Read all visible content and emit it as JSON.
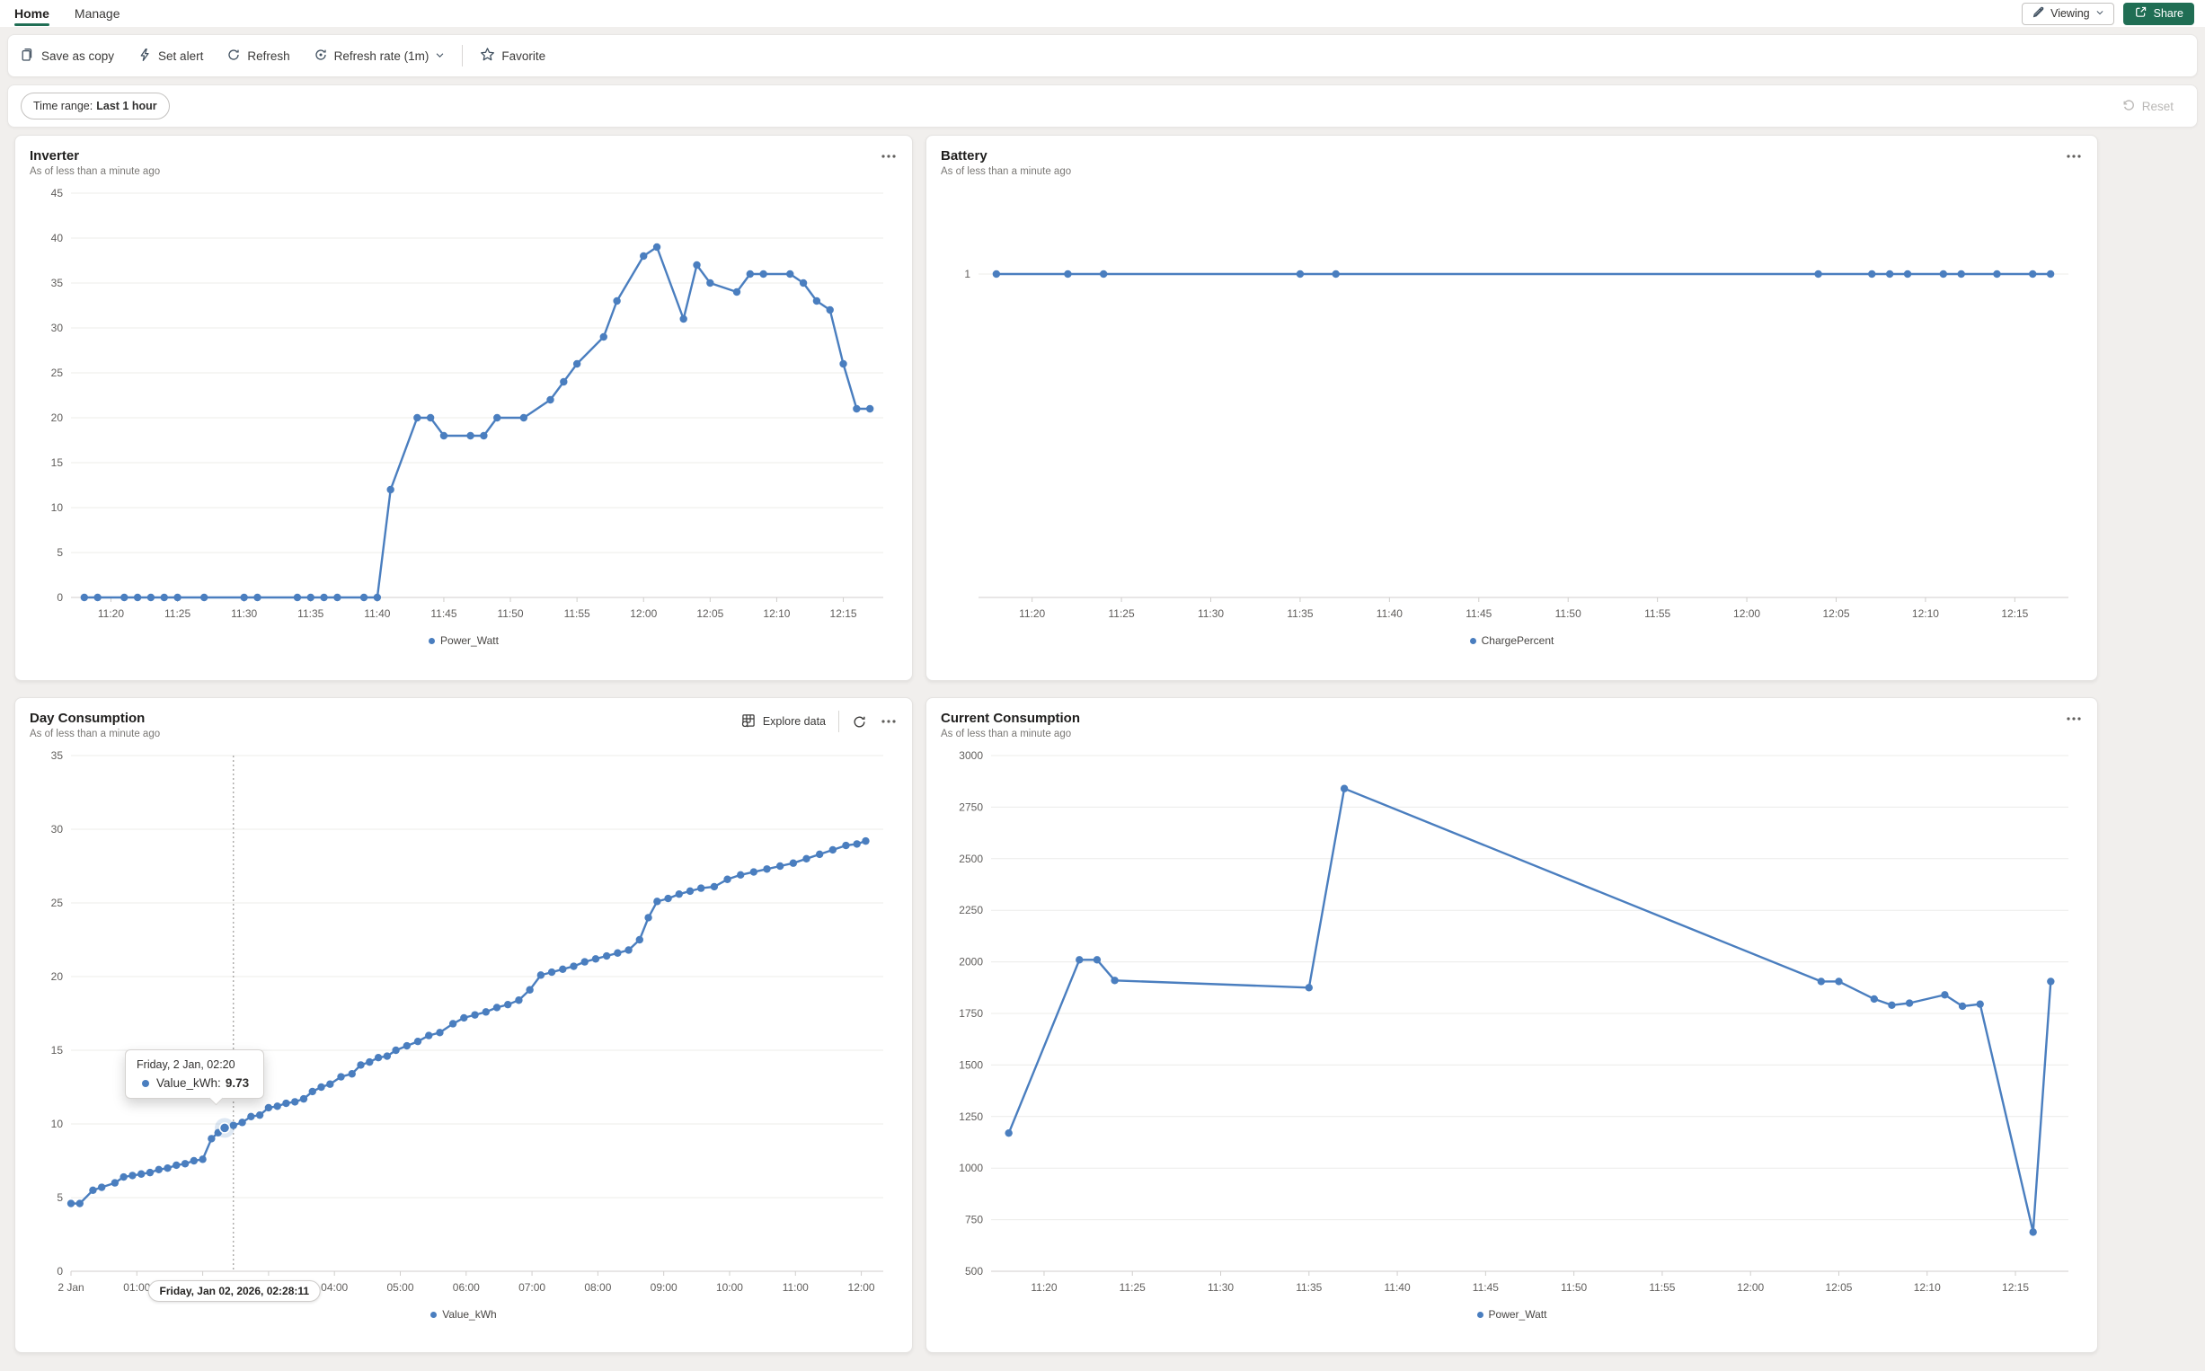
{
  "header": {
    "tabs": [
      {
        "label": "Home"
      },
      {
        "label": "Manage"
      }
    ],
    "viewing_label": "Viewing",
    "share_label": "Share"
  },
  "toolbar": {
    "save_as_copy": "Save as copy",
    "set_alert": "Set alert",
    "refresh": "Refresh",
    "refresh_rate": "Refresh rate (1m)",
    "favorite": "Favorite"
  },
  "filter_bar": {
    "time_range_label": "Time range:",
    "time_range_value": "Last 1 hour",
    "reset_label": "Reset"
  },
  "day_panel_actions": {
    "explore_data": "Explore data"
  },
  "day_tooltip": {
    "date": "Friday, 2 Jan, 02:20",
    "series_label": "Value_kWh:",
    "value": "9.73"
  },
  "day_axis_pill": "Friday, Jan 02, 2026, 02:28:11",
  "colors": {
    "series_blue": "#4a7ebf",
    "accent_green": "#206e54"
  },
  "chart_data": [
    {
      "type": "line",
      "title": "Inverter",
      "subtitle": "As of less than a minute ago",
      "legend": "Power_Watt",
      "color": "#4a7ebf",
      "margin_left": 46,
      "x_domain": [
        "11:17",
        "12:18"
      ],
      "x_ticks": [
        {
          "t": "11:20",
          "label": "11:20"
        },
        {
          "t": "11:25",
          "label": "11:25"
        },
        {
          "t": "11:30",
          "label": "11:30"
        },
        {
          "t": "11:35",
          "label": "11:35"
        },
        {
          "t": "11:40",
          "label": "11:40"
        },
        {
          "t": "11:45",
          "label": "11:45"
        },
        {
          "t": "11:50",
          "label": "11:50"
        },
        {
          "t": "11:55",
          "label": "11:55"
        },
        {
          "t": "12:00",
          "label": "12:00"
        },
        {
          "t": "12:05",
          "label": "12:05"
        },
        {
          "t": "12:10",
          "label": "12:10"
        },
        {
          "t": "12:15",
          "label": "12:15"
        }
      ],
      "ylim": [
        0,
        45
      ],
      "y_ticks": [
        0,
        5,
        10,
        15,
        20,
        25,
        30,
        35,
        40,
        45
      ],
      "points": [
        [
          "11:18",
          0
        ],
        [
          "11:19",
          0
        ],
        [
          "11:21",
          0
        ],
        [
          "11:22",
          0
        ],
        [
          "11:23",
          0
        ],
        [
          "11:24",
          0
        ],
        [
          "11:25",
          0
        ],
        [
          "11:27",
          0
        ],
        [
          "11:30",
          0
        ],
        [
          "11:31",
          0
        ],
        [
          "11:34",
          0
        ],
        [
          "11:35",
          0
        ],
        [
          "11:36",
          0
        ],
        [
          "11:37",
          0
        ],
        [
          "11:39",
          0
        ],
        [
          "11:40",
          0
        ],
        [
          "11:41",
          12
        ],
        [
          "11:43",
          20
        ],
        [
          "11:44",
          20
        ],
        [
          "11:45",
          18
        ],
        [
          "11:47",
          18
        ],
        [
          "11:48",
          18
        ],
        [
          "11:49",
          20
        ],
        [
          "11:51",
          20
        ],
        [
          "11:53",
          22
        ],
        [
          "11:54",
          24
        ],
        [
          "11:55",
          26
        ],
        [
          "11:57",
          29
        ],
        [
          "11:58",
          33
        ],
        [
          "12:00",
          38
        ],
        [
          "12:01",
          39
        ],
        [
          "12:03",
          31
        ],
        [
          "12:04",
          37
        ],
        [
          "12:05",
          35
        ],
        [
          "12:07",
          34
        ],
        [
          "12:08",
          36
        ],
        [
          "12:09",
          36
        ],
        [
          "12:11",
          36
        ],
        [
          "12:12",
          35
        ],
        [
          "12:13",
          33
        ],
        [
          "12:14",
          32
        ],
        [
          "12:15",
          26
        ],
        [
          "12:16",
          21
        ],
        [
          "12:17",
          21
        ]
      ]
    },
    {
      "type": "line",
      "title": "Battery",
      "subtitle": "As of less than a minute ago",
      "legend": "ChargePercent",
      "color": "#4a7ebf",
      "margin_left": 42,
      "x_domain": [
        "11:17",
        "12:18"
      ],
      "x_ticks": [
        {
          "t": "11:20",
          "label": "11:20"
        },
        {
          "t": "11:25",
          "label": "11:25"
        },
        {
          "t": "11:30",
          "label": "11:30"
        },
        {
          "t": "11:35",
          "label": "11:35"
        },
        {
          "t": "11:40",
          "label": "11:40"
        },
        {
          "t": "11:45",
          "label": "11:45"
        },
        {
          "t": "11:50",
          "label": "11:50"
        },
        {
          "t": "11:55",
          "label": "11:55"
        },
        {
          "t": "12:00",
          "label": "12:00"
        },
        {
          "t": "12:05",
          "label": "12:05"
        },
        {
          "t": "12:10",
          "label": "12:10"
        },
        {
          "t": "12:15",
          "label": "12:15"
        }
      ],
      "ylim": [
        0,
        1.25
      ],
      "y_ticks": [
        1
      ],
      "points": [
        [
          "11:18",
          1
        ],
        [
          "11:22",
          1
        ],
        [
          "11:24",
          1
        ],
        [
          "11:35",
          1
        ],
        [
          "11:37",
          1
        ],
        [
          "12:04",
          1
        ],
        [
          "12:07",
          1
        ],
        [
          "12:08",
          1
        ],
        [
          "12:09",
          1
        ],
        [
          "12:11",
          1
        ],
        [
          "12:12",
          1
        ],
        [
          "12:14",
          1
        ],
        [
          "12:16",
          1
        ],
        [
          "12:17",
          1
        ]
      ]
    },
    {
      "type": "line",
      "title": "Day Consumption",
      "subtitle": "As of less than a minute ago",
      "legend": "Value_kWh",
      "color": "#4a7ebf",
      "margin_left": 46,
      "x_domain": [
        "00:00",
        "12:20"
      ],
      "x_ticks": [
        {
          "t": "00:00",
          "label": "2 Jan"
        },
        {
          "t": "01:00",
          "label": "01:00"
        },
        {
          "t": "02:00",
          "label": "02:00"
        },
        {
          "t": "03:00",
          "label": "03:00"
        },
        {
          "t": "04:00",
          "label": "04:00"
        },
        {
          "t": "05:00",
          "label": "05:00"
        },
        {
          "t": "06:00",
          "label": "06:00"
        },
        {
          "t": "07:00",
          "label": "07:00"
        },
        {
          "t": "08:00",
          "label": "08:00"
        },
        {
          "t": "09:00",
          "label": "09:00"
        },
        {
          "t": "10:00",
          "label": "10:00"
        },
        {
          "t": "11:00",
          "label": "11:00"
        },
        {
          "t": "12:00",
          "label": "12:00"
        }
      ],
      "ylim": [
        0,
        35
      ],
      "y_ticks": [
        0,
        5,
        10,
        15,
        20,
        25,
        30,
        35
      ],
      "hover": {
        "t": "02:20",
        "value": 9.73,
        "line_t": "02:28"
      },
      "points": [
        [
          "00:00",
          4.6
        ],
        [
          "00:08",
          4.6
        ],
        [
          "00:20",
          5.5
        ],
        [
          "00:28",
          5.7
        ],
        [
          "00:40",
          6.0
        ],
        [
          "00:48",
          6.4
        ],
        [
          "00:56",
          6.5
        ],
        [
          "01:04",
          6.6
        ],
        [
          "01:12",
          6.7
        ],
        [
          "01:20",
          6.9
        ],
        [
          "01:28",
          7.0
        ],
        [
          "01:36",
          7.2
        ],
        [
          "01:44",
          7.3
        ],
        [
          "01:52",
          7.5
        ],
        [
          "02:00",
          7.6
        ],
        [
          "02:08",
          9.0
        ],
        [
          "02:14",
          9.4
        ],
        [
          "02:20",
          9.73
        ],
        [
          "02:28",
          9.9
        ],
        [
          "02:36",
          10.1
        ],
        [
          "02:44",
          10.5
        ],
        [
          "02:52",
          10.6
        ],
        [
          "03:00",
          11.1
        ],
        [
          "03:08",
          11.2
        ],
        [
          "03:16",
          11.4
        ],
        [
          "03:24",
          11.5
        ],
        [
          "03:32",
          11.7
        ],
        [
          "03:40",
          12.2
        ],
        [
          "03:48",
          12.5
        ],
        [
          "03:56",
          12.7
        ],
        [
          "04:06",
          13.2
        ],
        [
          "04:16",
          13.4
        ],
        [
          "04:24",
          14.0
        ],
        [
          "04:32",
          14.2
        ],
        [
          "04:40",
          14.5
        ],
        [
          "04:48",
          14.6
        ],
        [
          "04:56",
          15.0
        ],
        [
          "05:06",
          15.3
        ],
        [
          "05:16",
          15.6
        ],
        [
          "05:26",
          16.0
        ],
        [
          "05:36",
          16.2
        ],
        [
          "05:48",
          16.8
        ],
        [
          "05:58",
          17.2
        ],
        [
          "06:08",
          17.4
        ],
        [
          "06:18",
          17.6
        ],
        [
          "06:28",
          17.9
        ],
        [
          "06:38",
          18.1
        ],
        [
          "06:48",
          18.4
        ],
        [
          "06:58",
          19.1
        ],
        [
          "07:08",
          20.1
        ],
        [
          "07:18",
          20.3
        ],
        [
          "07:28",
          20.5
        ],
        [
          "07:38",
          20.7
        ],
        [
          "07:48",
          21.0
        ],
        [
          "07:58",
          21.2
        ],
        [
          "08:08",
          21.4
        ],
        [
          "08:18",
          21.6
        ],
        [
          "08:28",
          21.8
        ],
        [
          "08:38",
          22.5
        ],
        [
          "08:46",
          24.0
        ],
        [
          "08:54",
          25.1
        ],
        [
          "09:04",
          25.3
        ],
        [
          "09:14",
          25.6
        ],
        [
          "09:24",
          25.8
        ],
        [
          "09:34",
          26.0
        ],
        [
          "09:46",
          26.1
        ],
        [
          "09:58",
          26.6
        ],
        [
          "10:10",
          26.9
        ],
        [
          "10:22",
          27.1
        ],
        [
          "10:34",
          27.3
        ],
        [
          "10:46",
          27.5
        ],
        [
          "10:58",
          27.7
        ],
        [
          "11:10",
          28.0
        ],
        [
          "11:22",
          28.3
        ],
        [
          "11:34",
          28.6
        ],
        [
          "11:46",
          28.9
        ],
        [
          "11:56",
          29.0
        ],
        [
          "12:04",
          29.2
        ]
      ]
    },
    {
      "type": "line",
      "title": "Current Consumption",
      "subtitle": "As of less than a minute ago",
      "legend": "Power_Watt",
      "color": "#4a7ebf",
      "margin_left": 56,
      "x_domain": [
        "11:17",
        "12:18"
      ],
      "x_ticks": [
        {
          "t": "11:20",
          "label": "11:20"
        },
        {
          "t": "11:25",
          "label": "11:25"
        },
        {
          "t": "11:30",
          "label": "11:30"
        },
        {
          "t": "11:35",
          "label": "11:35"
        },
        {
          "t": "11:40",
          "label": "11:40"
        },
        {
          "t": "11:45",
          "label": "11:45"
        },
        {
          "t": "11:50",
          "label": "11:50"
        },
        {
          "t": "11:55",
          "label": "11:55"
        },
        {
          "t": "12:00",
          "label": "12:00"
        },
        {
          "t": "12:05",
          "label": "12:05"
        },
        {
          "t": "12:10",
          "label": "12:10"
        },
        {
          "t": "12:15",
          "label": "12:15"
        }
      ],
      "ylim": [
        500,
        3000
      ],
      "y_ticks": [
        500,
        750,
        1000,
        1250,
        1500,
        1750,
        2000,
        2250,
        2500,
        2750,
        3000
      ],
      "points": [
        [
          "11:18",
          1170
        ],
        [
          "11:22",
          2010
        ],
        [
          "11:23",
          2010
        ],
        [
          "11:24",
          1910
        ],
        [
          "11:35",
          1875
        ],
        [
          "11:37",
          2840
        ],
        [
          "12:04",
          1905
        ],
        [
          "12:05",
          1905
        ],
        [
          "12:07",
          1820
        ],
        [
          "12:08",
          1790
        ],
        [
          "12:09",
          1800
        ],
        [
          "12:11",
          1840
        ],
        [
          "12:12",
          1785
        ],
        [
          "12:13",
          1795
        ],
        [
          "12:16",
          690
        ],
        [
          "12:17",
          1905
        ]
      ]
    }
  ]
}
